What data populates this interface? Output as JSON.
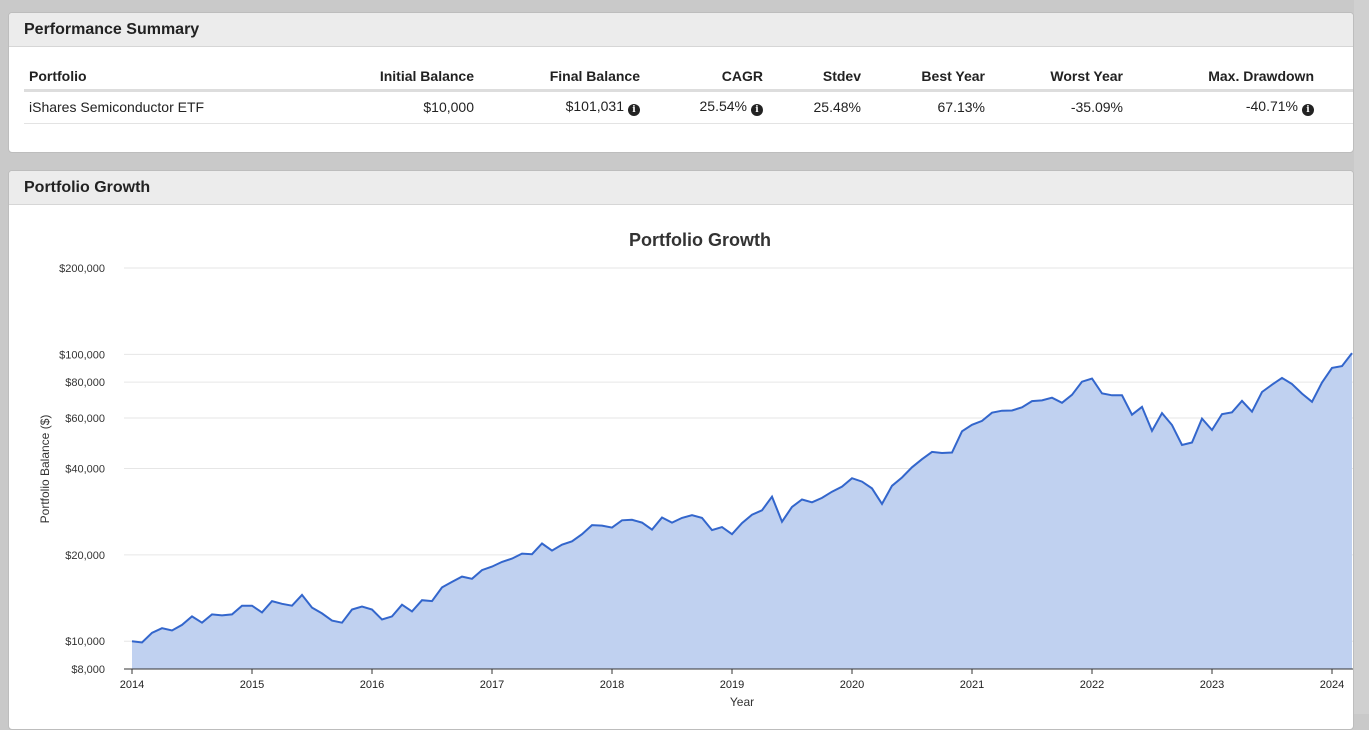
{
  "summary": {
    "title": "Performance Summary",
    "columns": [
      "Portfolio",
      "Initial Balance",
      "Final Balance",
      "CAGR",
      "Stdev",
      "Best Year",
      "Worst Year",
      "Max. Drawdown"
    ],
    "row": {
      "portfolio": "iShares Semiconductor ETF",
      "initial_balance": "$10,000",
      "final_balance": "$101,031",
      "cagr": "25.54%",
      "stdev": "25.48%",
      "best_year": "67.13%",
      "worst_year": "-35.09%",
      "max_drawdown": "-40.71%"
    },
    "info_icon": "info-circle-icon"
  },
  "growth_panel": {
    "title": "Portfolio Growth"
  },
  "chart_data": {
    "type": "area",
    "title": "Portfolio Growth",
    "xlabel": "Year",
    "ylabel": "Portfolio Balance ($)",
    "y_scale": "log",
    "ylim": [
      8000,
      200000
    ],
    "y_ticks": [
      {
        "value": 8000,
        "label": "$8,000"
      },
      {
        "value": 10000,
        "label": "$10,000"
      },
      {
        "value": 20000,
        "label": "$20,000"
      },
      {
        "value": 40000,
        "label": "$40,000"
      },
      {
        "value": 60000,
        "label": "$60,000"
      },
      {
        "value": 80000,
        "label": "$80,000"
      },
      {
        "value": 100000,
        "label": "$100,000"
      },
      {
        "value": 200000,
        "label": "$200,000"
      }
    ],
    "x_ticks": [
      {
        "value": 2014,
        "label": "2014"
      },
      {
        "value": 2015,
        "label": "2015"
      },
      {
        "value": 2016,
        "label": "2016"
      },
      {
        "value": 2017,
        "label": "2017"
      },
      {
        "value": 2018,
        "label": "2018"
      },
      {
        "value": 2019,
        "label": "2019"
      },
      {
        "value": 2020,
        "label": "2020"
      },
      {
        "value": 2021,
        "label": "2021"
      },
      {
        "value": 2022,
        "label": "2022"
      },
      {
        "value": 2023,
        "label": "2023"
      },
      {
        "value": 2024,
        "label": "2024"
      }
    ],
    "xlim": [
      2014,
      2024.2
    ],
    "grid": true,
    "colors": {
      "line": "#3366cc",
      "fill": "#c0d1f0"
    },
    "series": [
      {
        "x": [
          2014.0,
          2014.083,
          2014.167,
          2014.25,
          2014.333,
          2014.417,
          2014.5,
          2014.583,
          2014.667,
          2014.75,
          2014.833,
          2014.917,
          2015.0,
          2015.083,
          2015.167,
          2015.25,
          2015.333,
          2015.417,
          2015.5,
          2015.583,
          2015.667,
          2015.75,
          2015.833,
          2015.917,
          2016.0,
          2016.083,
          2016.167,
          2016.25,
          2016.333,
          2016.417,
          2016.5,
          2016.583,
          2016.667,
          2016.75,
          2016.833,
          2016.917,
          2017.0,
          2017.083,
          2017.167,
          2017.25,
          2017.333,
          2017.417,
          2017.5,
          2017.583,
          2017.667,
          2017.75,
          2017.833,
          2017.917,
          2018.0,
          2018.083,
          2018.167,
          2018.25,
          2018.333,
          2018.417,
          2018.5,
          2018.583,
          2018.667,
          2018.75,
          2018.833,
          2018.917,
          2019.0,
          2019.083,
          2019.167,
          2019.25,
          2019.333,
          2019.417,
          2019.5,
          2019.583,
          2019.667,
          2019.75,
          2019.833,
          2019.917,
          2020.0,
          2020.083,
          2020.167,
          2020.25,
          2020.333,
          2020.417,
          2020.5,
          2020.583,
          2020.667,
          2020.75,
          2020.833,
          2020.917,
          2021.0,
          2021.083,
          2021.167,
          2021.25,
          2021.333,
          2021.417,
          2021.5,
          2021.583,
          2021.667,
          2021.75,
          2021.833,
          2021.917,
          2022.0,
          2022.083,
          2022.167,
          2022.25,
          2022.333,
          2022.417,
          2022.5,
          2022.583,
          2022.667,
          2022.75,
          2022.833,
          2022.917,
          2023.0,
          2023.083,
          2023.167,
          2023.25,
          2023.333,
          2023.417,
          2023.5,
          2023.583,
          2023.667,
          2023.75,
          2023.833,
          2023.917,
          2024.0,
          2024.083,
          2024.167
        ],
        "values": [
          10000,
          9900,
          10700,
          11100,
          10900,
          11400,
          12200,
          11600,
          12400,
          12300,
          12400,
          13300,
          13300,
          12600,
          13800,
          13500,
          13300,
          14500,
          13100,
          12500,
          11800,
          11600,
          12900,
          13200,
          12900,
          11900,
          12200,
          13400,
          12700,
          13900,
          13800,
          15400,
          16100,
          16800,
          16500,
          17700,
          18200,
          18900,
          19400,
          20200,
          20100,
          21900,
          20700,
          21700,
          22300,
          23600,
          25400,
          25300,
          24900,
          26400,
          26500,
          25900,
          24500,
          27000,
          25900,
          26900,
          27500,
          26900,
          24400,
          25000,
          23600,
          25800,
          27600,
          28600,
          31900,
          26100,
          29400,
          31200,
          30500,
          31600,
          33200,
          34600,
          37000,
          36000,
          34100,
          30100,
          34800,
          37200,
          40400,
          43100,
          45700,
          45300,
          45500,
          53900,
          56800,
          58600,
          62600,
          63600,
          63700,
          65400,
          68700,
          69100,
          70600,
          67800,
          72300,
          80300,
          82400,
          73100,
          72000,
          72000,
          61600,
          65600,
          54100,
          62400,
          56700,
          48300,
          49300,
          59700,
          54500,
          61900,
          62800,
          68800,
          63100,
          73900,
          78400,
          82800,
          78800,
          73000,
          68300,
          79800,
          89700,
          91000,
          101031
        ]
      }
    ]
  }
}
